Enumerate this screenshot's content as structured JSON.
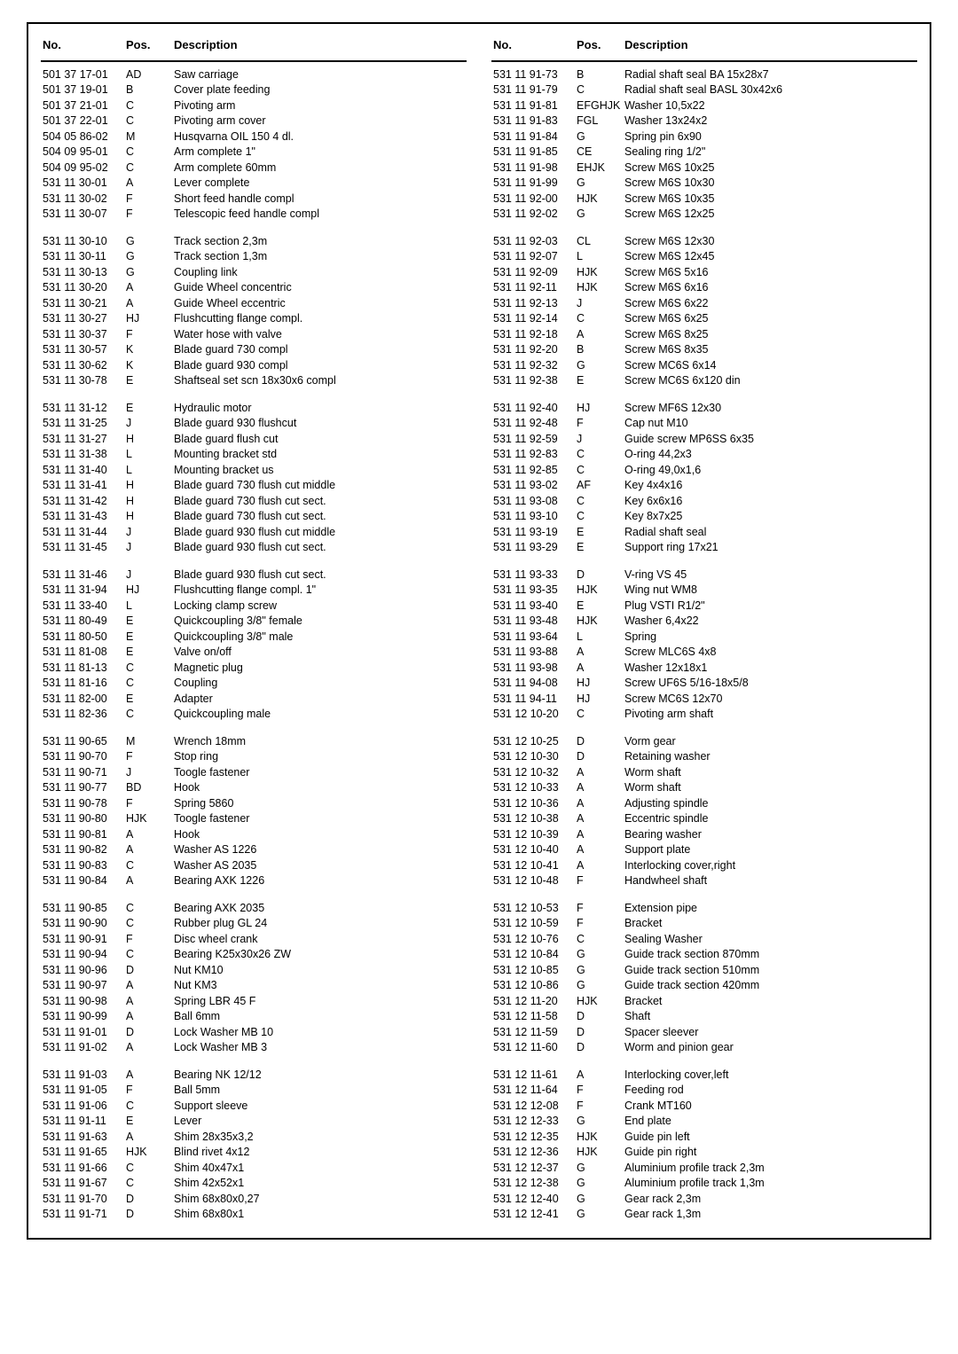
{
  "headers": {
    "no": "No.",
    "pos": "Pos.",
    "desc": "Description"
  },
  "left": [
    [
      {
        "no": "501 37 17-01",
        "pos": "AD",
        "desc": "Saw carriage"
      },
      {
        "no": "501 37 19-01",
        "pos": "B",
        "desc": "Cover plate feeding"
      },
      {
        "no": "501 37 21-01",
        "pos": "C",
        "desc": "Pivoting arm"
      },
      {
        "no": "501 37 22-01",
        "pos": "C",
        "desc": "Pivoting arm cover"
      },
      {
        "no": "504 05 86-02",
        "pos": "M",
        "desc": "Husqvarna OIL 150 4 dl."
      },
      {
        "no": "504 09 95-01",
        "pos": "C",
        "desc": "Arm complete 1\""
      },
      {
        "no": "504 09 95-02",
        "pos": "C",
        "desc": "Arm complete 60mm"
      },
      {
        "no": "531 11 30-01",
        "pos": "A",
        "desc": "Lever complete"
      },
      {
        "no": "531 11 30-02",
        "pos": "F",
        "desc": "Short feed handle compl"
      },
      {
        "no": "531 11 30-07",
        "pos": "F",
        "desc": "Telescopic feed handle compl"
      }
    ],
    [
      {
        "no": "531 11 30-10",
        "pos": "G",
        "desc": "Track section 2,3m"
      },
      {
        "no": "531 11 30-11",
        "pos": "G",
        "desc": "Track section 1,3m"
      },
      {
        "no": "531 11 30-13",
        "pos": "G",
        "desc": "Coupling link"
      },
      {
        "no": "531 11 30-20",
        "pos": "A",
        "desc": "Guide Wheel concentric"
      },
      {
        "no": "531 11 30-21",
        "pos": "A",
        "desc": "Guide Wheel eccentric"
      },
      {
        "no": "531 11 30-27",
        "pos": "HJ",
        "desc": "Flushcutting flange compl."
      },
      {
        "no": "531 11 30-37",
        "pos": "F",
        "desc": "Water hose with valve"
      },
      {
        "no": "531 11 30-57",
        "pos": "K",
        "desc": "Blade guard 730 compl"
      },
      {
        "no": "531 11 30-62",
        "pos": "K",
        "desc": "Blade guard 930 compl"
      },
      {
        "no": "531 11 30-78",
        "pos": "E",
        "desc": "Shaftseal set scn 18x30x6 compl"
      }
    ],
    [
      {
        "no": "531 11 31-12",
        "pos": "E",
        "desc": "Hydraulic motor"
      },
      {
        "no": "531 11 31-25",
        "pos": "J",
        "desc": "Blade guard 930 flushcut"
      },
      {
        "no": "531 11 31-27",
        "pos": "H",
        "desc": "Blade guard flush cut"
      },
      {
        "no": "531 11 31-38",
        "pos": "L",
        "desc": "Mounting bracket std"
      },
      {
        "no": "531 11 31-40",
        "pos": "L",
        "desc": "Mounting bracket us"
      },
      {
        "no": "531 11 31-41",
        "pos": "H",
        "desc": "Blade guard 730 flush cut middle"
      },
      {
        "no": "531 11 31-42",
        "pos": "H",
        "desc": "Blade guard 730 flush cut sect."
      },
      {
        "no": "531 11 31-43",
        "pos": "H",
        "desc": "Blade guard 730 flush cut sect."
      },
      {
        "no": "531 11 31-44",
        "pos": "J",
        "desc": "Blade guard 930 flush cut middle"
      },
      {
        "no": "531 11 31-45",
        "pos": "J",
        "desc": "Blade guard 930 flush cut sect."
      }
    ],
    [
      {
        "no": "531 11 31-46",
        "pos": "J",
        "desc": "Blade guard 930 flush cut sect."
      },
      {
        "no": "531 11 31-94",
        "pos": "HJ",
        "desc": "Flushcutting flange compl. 1\""
      },
      {
        "no": "531 11 33-40",
        "pos": "L",
        "desc": "Locking clamp screw"
      },
      {
        "no": "531 11 80-49",
        "pos": "E",
        "desc": "Quickcoupling 3/8\" female"
      },
      {
        "no": "531 11 80-50",
        "pos": "E",
        "desc": "Quickcoupling 3/8\" male"
      },
      {
        "no": "531 11 81-08",
        "pos": "E",
        "desc": "Valve on/off"
      },
      {
        "no": "531 11 81-13",
        "pos": "C",
        "desc": "Magnetic plug"
      },
      {
        "no": "531 11 81-16",
        "pos": "C",
        "desc": "Coupling"
      },
      {
        "no": "531 11 82-00",
        "pos": "E",
        "desc": "Adapter"
      },
      {
        "no": "531 11 82-36",
        "pos": "C",
        "desc": "Quickcoupling male"
      }
    ],
    [
      {
        "no": "531 11 90-65",
        "pos": "M",
        "desc": "Wrench 18mm"
      },
      {
        "no": "531 11 90-70",
        "pos": "F",
        "desc": "Stop ring"
      },
      {
        "no": "531 11 90-71",
        "pos": "J",
        "desc": "Toogle fastener"
      },
      {
        "no": "531 11 90-77",
        "pos": "BD",
        "desc": "Hook"
      },
      {
        "no": "531 11 90-78",
        "pos": "F",
        "desc": "Spring 5860"
      },
      {
        "no": "531 11 90-80",
        "pos": "HJK",
        "desc": "Toogle fastener"
      },
      {
        "no": "531 11 90-81",
        "pos": "A",
        "desc": "Hook"
      },
      {
        "no": "531 11 90-82",
        "pos": "A",
        "desc": "Washer AS 1226"
      },
      {
        "no": "531 11 90-83",
        "pos": "C",
        "desc": "Washer AS 2035"
      },
      {
        "no": "531 11 90-84",
        "pos": "A",
        "desc": "Bearing AXK 1226"
      }
    ],
    [
      {
        "no": "531 11 90-85",
        "pos": "C",
        "desc": "Bearing AXK 2035"
      },
      {
        "no": "531 11 90-90",
        "pos": "C",
        "desc": "Rubber plug GL 24"
      },
      {
        "no": "531 11 90-91",
        "pos": "F",
        "desc": "Disc wheel crank"
      },
      {
        "no": "531 11 90-94",
        "pos": "C",
        "desc": "Bearing K25x30x26 ZW"
      },
      {
        "no": "531 11 90-96",
        "pos": "D",
        "desc": "Nut KM10"
      },
      {
        "no": "531 11 90-97",
        "pos": "A",
        "desc": "Nut KM3"
      },
      {
        "no": "531 11 90-98",
        "pos": "A",
        "desc": "Spring LBR 45 F"
      },
      {
        "no": "531 11 90-99",
        "pos": "A",
        "desc": "Ball 6mm"
      },
      {
        "no": "531 11 91-01",
        "pos": "D",
        "desc": "Lock Washer MB 10"
      },
      {
        "no": "531 11 91-02",
        "pos": "A",
        "desc": "Lock Washer MB 3"
      }
    ],
    [
      {
        "no": "531 11 91-03",
        "pos": "A",
        "desc": "Bearing NK 12/12"
      },
      {
        "no": "531 11 91-05",
        "pos": "F",
        "desc": "Ball 5mm"
      },
      {
        "no": "531 11 91-06",
        "pos": "C",
        "desc": "Support sleeve"
      },
      {
        "no": "531 11 91-11",
        "pos": "E",
        "desc": "Lever"
      },
      {
        "no": "531 11 91-63",
        "pos": "A",
        "desc": "Shim 28x35x3,2"
      },
      {
        "no": "531 11 91-65",
        "pos": "HJK",
        "desc": "Blind rivet 4x12"
      },
      {
        "no": "531 11 91-66",
        "pos": "C",
        "desc": "Shim 40x47x1"
      },
      {
        "no": "531 11 91-67",
        "pos": "C",
        "desc": "Shim 42x52x1"
      },
      {
        "no": "531 11 91-70",
        "pos": "D",
        "desc": "Shim 68x80x0,27"
      },
      {
        "no": "531 11 91-71",
        "pos": "D",
        "desc": "Shim 68x80x1"
      }
    ]
  ],
  "right": [
    [
      {
        "no": "531 11 91-73",
        "pos": "B",
        "desc": "Radial shaft seal BA 15x28x7"
      },
      {
        "no": "531 11 91-79",
        "pos": "C",
        "desc": "Radial shaft seal BASL 30x42x6"
      },
      {
        "no": "531 11 91-81",
        "pos": "EFGHJK",
        "desc": "Washer 10,5x22"
      },
      {
        "no": "531 11 91-83",
        "pos": "FGL",
        "desc": "Washer 13x24x2"
      },
      {
        "no": "531 11 91-84",
        "pos": "G",
        "desc": "Spring pin 6x90"
      },
      {
        "no": "531 11 91-85",
        "pos": "CE",
        "desc": "Sealing ring 1/2\""
      },
      {
        "no": "531 11 91-98",
        "pos": "EHJK",
        "desc": "Screw M6S 10x25"
      },
      {
        "no": "531 11 91-99",
        "pos": "G",
        "desc": "Screw M6S 10x30"
      },
      {
        "no": "531 11 92-00",
        "pos": "HJK",
        "desc": "Screw M6S 10x35"
      },
      {
        "no": "531 11 92-02",
        "pos": "G",
        "desc": "Screw M6S 12x25"
      }
    ],
    [
      {
        "no": "531 11 92-03",
        "pos": "CL",
        "desc": "Screw M6S 12x30"
      },
      {
        "no": "531 11 92-07",
        "pos": "L",
        "desc": "Screw M6S 12x45"
      },
      {
        "no": "531 11 92-09",
        "pos": "HJK",
        "desc": "Screw M6S  5x16"
      },
      {
        "no": "531 11 92-11",
        "pos": "HJK",
        "desc": "Screw M6S  6x16"
      },
      {
        "no": "531 11 92-13",
        "pos": "J",
        "desc": "Screw M6S  6x22"
      },
      {
        "no": "531 11 92-14",
        "pos": "C",
        "desc": "Screw M6S  6x25"
      },
      {
        "no": "531 11 92-18",
        "pos": "A",
        "desc": "Screw M6S  8x25"
      },
      {
        "no": "531 11 92-20",
        "pos": "B",
        "desc": "Screw M6S  8x35"
      },
      {
        "no": "531 11 92-32",
        "pos": "G",
        "desc": "Screw MC6S 6x14"
      },
      {
        "no": "531 11 92-38",
        "pos": "E",
        "desc": "Screw MC6S 6x120 din"
      }
    ],
    [
      {
        "no": "531 11 92-40",
        "pos": "HJ",
        "desc": "Screw MF6S 12x30"
      },
      {
        "no": "531 11 92-48",
        "pos": "F",
        "desc": "Cap nut M10"
      },
      {
        "no": "531 11 92-59",
        "pos": "J",
        "desc": "Guide screw MP6SS 6x35"
      },
      {
        "no": "531 11 92-83",
        "pos": "C",
        "desc": "O-ring 44,2x3"
      },
      {
        "no": "531 11 92-85",
        "pos": "C",
        "desc": "O-ring 49,0x1,6"
      },
      {
        "no": "531 11 93-02",
        "pos": "AF",
        "desc": "Key 4x4x16"
      },
      {
        "no": "531 11 93-08",
        "pos": "C",
        "desc": "Key 6x6x16"
      },
      {
        "no": "531 11 93-10",
        "pos": "C",
        "desc": "Key 8x7x25"
      },
      {
        "no": "531 11 93-19",
        "pos": "E",
        "desc": "Radial shaft seal"
      },
      {
        "no": "531 11 93-29",
        "pos": "E",
        "desc": "Support ring 17x21"
      }
    ],
    [
      {
        "no": "531 11 93-33",
        "pos": "D",
        "desc": "V-ring VS 45"
      },
      {
        "no": "531 11 93-35",
        "pos": "HJK",
        "desc": "Wing nut WM8"
      },
      {
        "no": "531 11 93-40",
        "pos": "E",
        "desc": "Plug VSTI R1/2\""
      },
      {
        "no": "531 11 93-48",
        "pos": "HJK",
        "desc": "Washer 6,4x22"
      },
      {
        "no": "531 11 93-64",
        "pos": "L",
        "desc": "Spring"
      },
      {
        "no": "531 11 93-88",
        "pos": "A",
        "desc": "Screw MLC6S 4x8"
      },
      {
        "no": "531 11 93-98",
        "pos": "A",
        "desc": "Washer 12x18x1"
      },
      {
        "no": "531 11 94-08",
        "pos": "HJ",
        "desc": "Screw UF6S 5/16-18x5/8"
      },
      {
        "no": "531 11 94-11",
        "pos": "HJ",
        "desc": "Screw MC6S 12x70"
      },
      {
        "no": "531 12 10-20",
        "pos": "C",
        "desc": "Pivoting arm shaft"
      }
    ],
    [
      {
        "no": "531 12 10-25",
        "pos": "D",
        "desc": "Vorm gear"
      },
      {
        "no": "531 12 10-30",
        "pos": "D",
        "desc": "Retaining washer"
      },
      {
        "no": "531 12 10-32",
        "pos": "A",
        "desc": "Worm shaft"
      },
      {
        "no": "531 12 10-33",
        "pos": "A",
        "desc": "Worm shaft"
      },
      {
        "no": "531 12 10-36",
        "pos": "A",
        "desc": "Adjusting spindle"
      },
      {
        "no": "531 12 10-38",
        "pos": "A",
        "desc": "Eccentric spindle"
      },
      {
        "no": "531 12 10-39",
        "pos": "A",
        "desc": "Bearing washer"
      },
      {
        "no": "531 12 10-40",
        "pos": "A",
        "desc": "Support plate"
      },
      {
        "no": "531 12 10-41",
        "pos": "A",
        "desc": "Interlocking cover,right"
      },
      {
        "no": "531 12 10-48",
        "pos": "F",
        "desc": "Handwheel shaft"
      }
    ],
    [
      {
        "no": "531 12 10-53",
        "pos": "F",
        "desc": "Extension pipe"
      },
      {
        "no": "531 12 10-59",
        "pos": "F",
        "desc": "Bracket"
      },
      {
        "no": "531 12 10-76",
        "pos": "C",
        "desc": "Sealing Washer"
      },
      {
        "no": "531 12 10-84",
        "pos": "G",
        "desc": "Guide track section 870mm"
      },
      {
        "no": "531 12 10-85",
        "pos": "G",
        "desc": "Guide track section 510mm"
      },
      {
        "no": "531 12 10-86",
        "pos": "G",
        "desc": "Guide track section 420mm"
      },
      {
        "no": "531 12 11-20",
        "pos": "HJK",
        "desc": "Bracket"
      },
      {
        "no": "531 12 11-58",
        "pos": "D",
        "desc": "Shaft"
      },
      {
        "no": "531 12 11-59",
        "pos": "D",
        "desc": "Spacer sleever"
      },
      {
        "no": "531 12 11-60",
        "pos": "D",
        "desc": "Worm and pinion gear"
      }
    ],
    [
      {
        "no": "531 12 11-61",
        "pos": "A",
        "desc": "Interlocking cover,left"
      },
      {
        "no": "531 12 11-64",
        "pos": "F",
        "desc": "Feeding rod"
      },
      {
        "no": "531 12 12-08",
        "pos": "F",
        "desc": "Crank MT160"
      },
      {
        "no": "531 12 12-33",
        "pos": "G",
        "desc": "End plate"
      },
      {
        "no": "531 12 12-35",
        "pos": "HJK",
        "desc": "Guide pin left"
      },
      {
        "no": "531 12 12-36",
        "pos": "HJK",
        "desc": "Guide pin right"
      },
      {
        "no": "531 12 12-37",
        "pos": "G",
        "desc": "Aluminium profile track 2,3m"
      },
      {
        "no": "531 12 12-38",
        "pos": "G",
        "desc": "Aluminium profile track 1,3m"
      },
      {
        "no": "531 12 12-40",
        "pos": "G",
        "desc": "Gear rack 2,3m"
      },
      {
        "no": "531 12 12-41",
        "pos": "G",
        "desc": "Gear rack 1,3m"
      }
    ]
  ]
}
